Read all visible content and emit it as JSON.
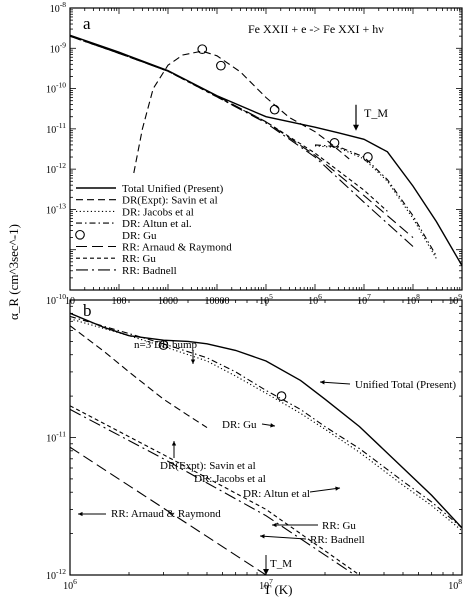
{
  "chart_data": [
    {
      "type": "line",
      "panel_label": "a",
      "title": "Fe XXII + e -> Fe XXI + hν",
      "xscale": "log",
      "yscale": "log",
      "xlim": [
        10,
        1000000000
      ],
      "ylim": [
        1e-14,
        1e-07
      ],
      "x_tick_labels": [
        "10",
        "100",
        "1000",
        "10000",
        "10^5",
        "10^6",
        "10^7",
        "10^8",
        "10^9"
      ],
      "y_tick_labels": [
        "10^-8",
        "10^-9",
        "10^-10",
        "10^-11",
        "10^-12",
        "10^-13"
      ],
      "ylabel": "α_R (cm^3sec^-1)",
      "legend_position": "lower-left",
      "annotations": [
        {
          "text": "T_M",
          "x": 10000000,
          "y": 8e-11
        }
      ],
      "series": [
        {
          "name": "Total Unified (Present)",
          "style": "solid",
          "x": [
            10,
            100,
            1000,
            10000,
            100000,
            1000000,
            3000000,
            10000000,
            30000000,
            100000000,
            300000000,
            1000000000
          ],
          "y": [
            2.1e-08,
            8e-09,
            2.8e-09,
            6.6e-10,
            2e-10,
            1.1e-10,
            8e-11,
            5.5e-11,
            2.7e-11,
            3.8e-12,
            5e-13,
            4e-14
          ]
        },
        {
          "name": "DR(Expt): Savin et al",
          "style": "dashed",
          "x": [
            200,
            300,
            500,
            1000,
            2000,
            5000,
            10000,
            30000,
            100000,
            300000,
            1000000,
            2000000,
            5000000
          ],
          "y": [
            8e-12,
            1e-10,
            1e-09,
            3.8e-09,
            6.8e-09,
            8.5e-09,
            6.5e-09,
            2.6e-09,
            6e-10,
            1.9e-10,
            8.5e-11,
            4.5e-11,
            1.8e-11
          ]
        },
        {
          "name": "DR: Jacobs et al",
          "style": "dotted",
          "x": [
            1000000,
            3000000,
            10000000,
            30000000,
            100000000,
            300000000
          ],
          "y": [
            3.8e-11,
            3.4e-11,
            1.8e-11,
            5e-12,
            6e-13,
            6e-14
          ]
        },
        {
          "name": "DR: Altun et al.",
          "style": "dashdot",
          "x": [
            1000000,
            3000000,
            10000000,
            30000000,
            100000000,
            300000000
          ],
          "y": [
            4e-11,
            3.6e-11,
            2e-11,
            5.5e-12,
            7e-13,
            7e-14
          ]
        },
        {
          "name": "DR: Gu",
          "style": "circles",
          "x": [
            5000,
            12000,
            150000,
            2500000,
            12000000
          ],
          "y": [
            9.5e-09,
            3.7e-09,
            3e-10,
            4.5e-11,
            2e-11
          ]
        },
        {
          "name": "RR: Arnaud & Raymond",
          "style": "long-dashed",
          "x": [
            10,
            100,
            1000,
            10000,
            100000,
            1000000,
            10000000,
            100000000
          ],
          "y": [
            2e-08,
            7.5e-09,
            2.7e-09,
            6.5e-10,
            1.5e-10,
            2.2e-11,
            2.2e-12,
            2e-13
          ]
        },
        {
          "name": "RR: Gu",
          "style": "short-dashed",
          "x": [
            10,
            100,
            1000,
            10000,
            100000,
            1000000,
            10000000,
            30000000
          ],
          "y": [
            2e-08,
            7.5e-09,
            2.7e-09,
            6.2e-10,
            1.5e-10,
            2.5e-11,
            3e-12,
            9e-13
          ]
        },
        {
          "name": "RR: Badnell",
          "style": "dash-dot-long",
          "x": [
            10,
            100,
            1000,
            10000,
            100000,
            1000000,
            10000000,
            100000000
          ],
          "y": [
            2e-08,
            7.5e-09,
            2.7e-09,
            6.2e-10,
            1.4e-10,
            2e-11,
            1.5e-12,
            1.2e-13
          ]
        }
      ]
    },
    {
      "type": "line",
      "panel_label": "b",
      "xscale": "log",
      "yscale": "log",
      "xlim": [
        1000000,
        100000000
      ],
      "ylim": [
        1e-12,
        1e-10
      ],
      "x_tick_labels": [
        "10^6",
        "10^7",
        "10^8"
      ],
      "y_tick_labels": [
        "10^-10",
        "10^-11",
        "10^-12"
      ],
      "xlabel": "T (K)",
      "annotations": [
        {
          "text": "n=3 DR bump",
          "x": 4000000,
          "y": 5.1e-11
        },
        {
          "text": "Unified Total (Present)",
          "x": 20000000,
          "y": 4.2e-11
        },
        {
          "text": "DR: Gu",
          "x": 7000000,
          "y": 2e-11
        },
        {
          "text": "DR(Expt): Savin et al",
          "x": 4000000,
          "y": 1.45e-11
        },
        {
          "text": "DR: Jacobs et al",
          "x": 15000000,
          "y": 1.2e-11
        },
        {
          "text": "DR: Altun et al",
          "x": 20000000,
          "y": 1.08e-11
        },
        {
          "text": "RR: Arnaud & Raymond",
          "x": 2500000,
          "y": 8.3e-12
        },
        {
          "text": "RR: Gu",
          "x": 10000000,
          "y": 5e-12
        },
        {
          "text": "RR: Badnell",
          "x": 12000000,
          "y": 4.6e-12
        },
        {
          "text": "T_M",
          "x": 10000000,
          "y": 1.2e-12
        }
      ],
      "series": [
        {
          "name": "Unified Total (Present)",
          "style": "solid",
          "x": [
            1000000,
            1500000,
            2000000,
            3000000,
            4000000,
            5000000,
            7000000,
            10000000,
            15000000,
            20000000,
            30000000,
            50000000,
            70000000,
            100000000
          ],
          "y": [
            8e-11,
            6.3e-11,
            5.5e-11,
            5.1e-11,
            5e-11,
            4.8e-11,
            4.3e-11,
            3.6e-11,
            2.6e-11,
            1.9e-11,
            1.2e-11,
            6e-12,
            3.8e-12,
            2.2e-12
          ]
        },
        {
          "name": "DR(Expt): Savin et al",
          "style": "dashed",
          "x": [
            1000000,
            1500000,
            2000000,
            3000000,
            4000000,
            5000000
          ],
          "y": [
            6.5e-11,
            4.2e-11,
            3e-11,
            1.9e-11,
            1.45e-11,
            1.18e-11
          ]
        },
        {
          "name": "DR: Jacobs et al",
          "style": "dotted",
          "x": [
            1000000,
            2000000,
            3000000,
            5000000,
            7000000,
            10000000,
            15000000,
            20000000,
            30000000,
            50000000,
            70000000,
            100000000
          ],
          "y": [
            7.3e-11,
            5.5e-11,
            4.6e-11,
            3.6e-11,
            2.8e-11,
            2.1e-11,
            1.5e-11,
            1.15e-11,
            7.8e-12,
            4.5e-12,
            3.2e-12,
            2.1e-12
          ]
        },
        {
          "name": "DR: Altun et al",
          "style": "dashdot",
          "x": [
            1000000,
            2000000,
            3000000,
            5000000,
            7000000,
            10000000,
            15000000,
            20000000,
            30000000,
            50000000,
            70000000,
            100000000
          ],
          "y": [
            7.6e-11,
            5.7e-11,
            4.8e-11,
            3.8e-11,
            3e-11,
            2.2e-11,
            1.6e-11,
            1.2e-11,
            8.3e-12,
            4.8e-12,
            3.4e-12,
            2.2e-12
          ]
        },
        {
          "name": "DR: Gu",
          "style": "circles",
          "x": [
            3000000,
            12000000
          ],
          "y": [
            4.7e-11,
            2e-11
          ]
        },
        {
          "name": "RR: Arnaud & Raymond",
          "style": "long-dashed",
          "x": [
            1000000,
            10000000
          ],
          "y": [
            8.5e-12,
            1e-12
          ]
        },
        {
          "name": "RR: Gu",
          "style": "short-dashed",
          "x": [
            1000000,
            3000000,
            10000000,
            30000000
          ],
          "y": [
            1.7e-11,
            7.5e-12,
            3e-12,
            1e-12
          ]
        },
        {
          "name": "RR: Badnell",
          "style": "dash-dot-long",
          "x": [
            1000000,
            3000000,
            10000000,
            30000000
          ],
          "y": [
            1.6e-11,
            7e-12,
            2.7e-12,
            9.5e-13
          ]
        }
      ]
    }
  ]
}
